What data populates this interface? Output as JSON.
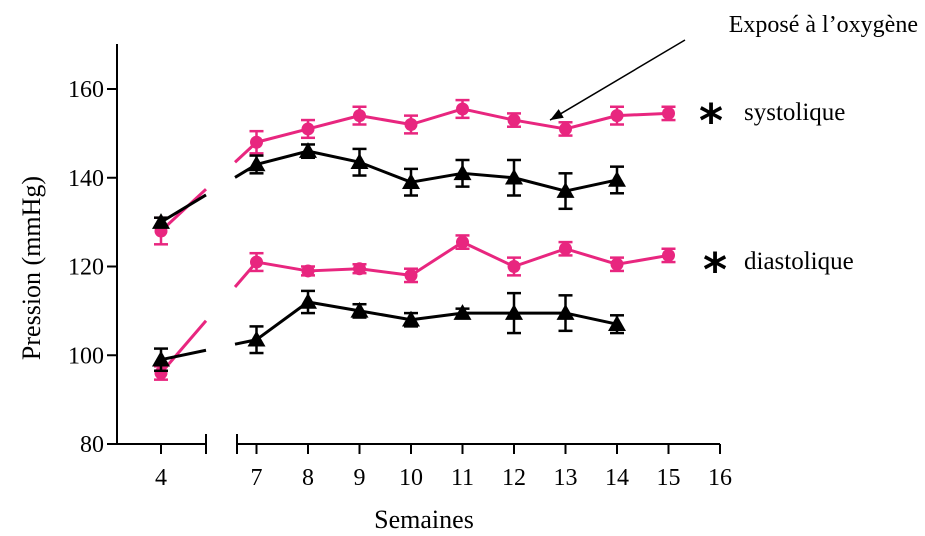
{
  "chart_data": {
    "type": "line",
    "title": "",
    "xlabel": "Semaines",
    "ylabel": "Pression (mmHg)",
    "xlim": [
      4,
      16
    ],
    "ylim": [
      80,
      170
    ],
    "x_axis_break": true,
    "x_ticks": [
      4,
      7,
      8,
      9,
      10,
      11,
      12,
      13,
      14,
      15,
      16
    ],
    "y_ticks": [
      80,
      100,
      120,
      140,
      160
    ],
    "legend": "none",
    "grid": false,
    "series": [
      {
        "group": "systolique",
        "color": "#e8267f",
        "marker": "circle",
        "points": [
          {
            "x": 4,
            "y": 128,
            "err": 3
          },
          {
            "x": 7,
            "y": 148,
            "err": 2.5
          },
          {
            "x": 8,
            "y": 151,
            "err": 2
          },
          {
            "x": 9,
            "y": 154,
            "err": 2
          },
          {
            "x": 10,
            "y": 152,
            "err": 2
          },
          {
            "x": 11,
            "y": 155.5,
            "err": 2
          },
          {
            "x": 12,
            "y": 153,
            "err": 1.5
          },
          {
            "x": 13,
            "y": 151,
            "err": 1.5
          },
          {
            "x": 14,
            "y": 154,
            "err": 2
          },
          {
            "x": 15,
            "y": 154.5,
            "err": 1.5
          }
        ]
      },
      {
        "group": "systolique",
        "color": "#000000",
        "marker": "triangle",
        "points": [
          {
            "x": 4,
            "y": 130,
            "err": 1
          },
          {
            "x": 7,
            "y": 143,
            "err": 2
          },
          {
            "x": 8,
            "y": 146,
            "err": 1.5
          },
          {
            "x": 9,
            "y": 143.5,
            "err": 3
          },
          {
            "x": 10,
            "y": 139,
            "err": 3
          },
          {
            "x": 11,
            "y": 141,
            "err": 3
          },
          {
            "x": 12,
            "y": 140,
            "err": 4
          },
          {
            "x": 13,
            "y": 137,
            "err": 4
          },
          {
            "x": 14,
            "y": 139.5,
            "err": 3
          }
        ]
      },
      {
        "group": "diastolique",
        "color": "#e8267f",
        "marker": "circle",
        "points": [
          {
            "x": 4,
            "y": 96,
            "err": 1.5
          },
          {
            "x": 7,
            "y": 121,
            "err": 2
          },
          {
            "x": 8,
            "y": 119,
            "err": 1
          },
          {
            "x": 9,
            "y": 119.5,
            "err": 1
          },
          {
            "x": 10,
            "y": 118,
            "err": 1.5
          },
          {
            "x": 11,
            "y": 125.5,
            "err": 1.5
          },
          {
            "x": 12,
            "y": 120,
            "err": 2
          },
          {
            "x": 13,
            "y": 124,
            "err": 1.5
          },
          {
            "x": 14,
            "y": 120.5,
            "err": 1.5
          },
          {
            "x": 15,
            "y": 122.5,
            "err": 1.5
          }
        ]
      },
      {
        "group": "diastolique",
        "color": "#000000",
        "marker": "triangle",
        "points": [
          {
            "x": 4,
            "y": 99,
            "err": 2.5
          },
          {
            "x": 7,
            "y": 103.5,
            "err": 3
          },
          {
            "x": 8,
            "y": 112,
            "err": 2.5
          },
          {
            "x": 9,
            "y": 110,
            "err": 1.5
          },
          {
            "x": 10,
            "y": 108,
            "err": 1.5
          },
          {
            "x": 11,
            "y": 109.5,
            "err": 1
          },
          {
            "x": 12,
            "y": 109.5,
            "err": 4.5
          },
          {
            "x": 13,
            "y": 109.5,
            "err": 4
          },
          {
            "x": 14,
            "y": 107,
            "err": 2
          }
        ]
      }
    ],
    "labels": {
      "systolique": "systolique",
      "diastolique": "diastolique",
      "star": "*"
    },
    "annotation": {
      "text": "Exposé à l’oxygène",
      "points_to": {
        "x": 12.7,
        "y": 153
      }
    }
  }
}
